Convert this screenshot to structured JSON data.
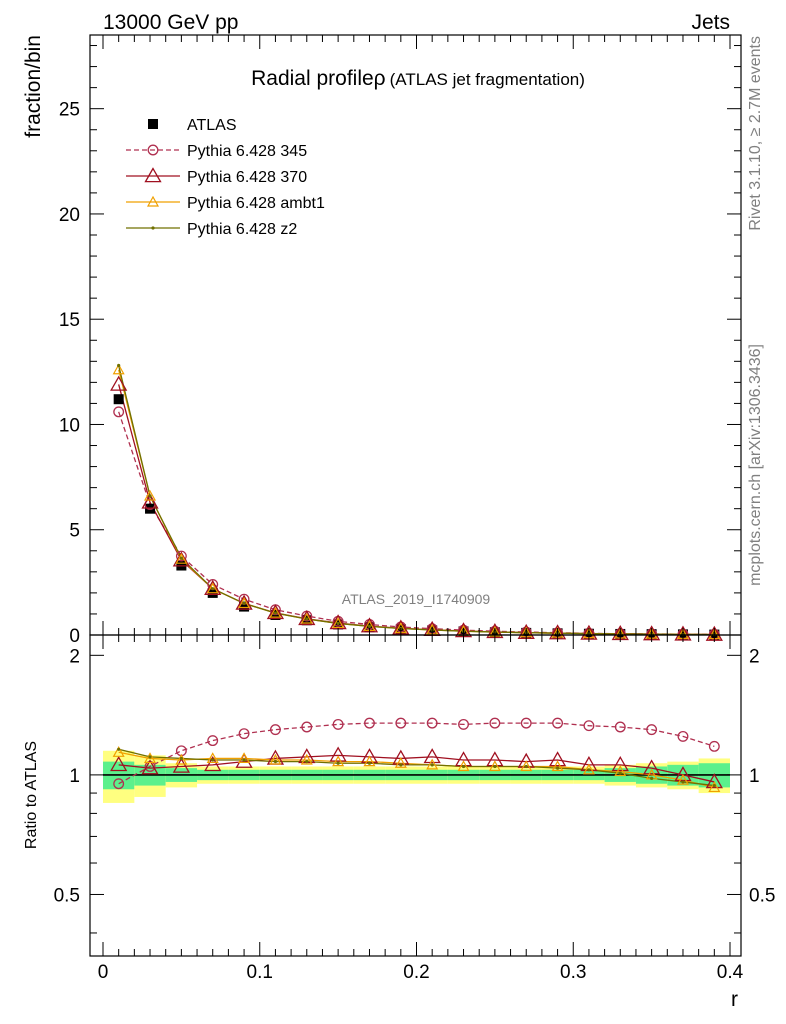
{
  "header": {
    "left": "13000 GeV pp",
    "right": "Jets"
  },
  "side_labels": {
    "rivet": "Rivet 3.1.10, ≥ 2.7M events",
    "mcplots": "mcplots.cern.ch [arXiv:1306.3436]"
  },
  "watermark": "ATLAS_2019_I1740909",
  "colors": {
    "atlas": "#000000",
    "p345": "#b03050",
    "p370": "#a01020",
    "ambt1": "#f0a000",
    "z2": "#707000",
    "band_inner": "#5cf08c",
    "band_outer": "#ffff80"
  },
  "chart_data": [
    {
      "type": "scatter",
      "title": "Radial profile",
      "title_symbol": "ρ",
      "subtitle": "(ATLAS jet fragmentation)",
      "ylabel": "fraction/bin",
      "xlabel": "r",
      "xlim": [
        0,
        0.4
      ],
      "ylim": [
        0,
        28.5
      ],
      "yticks": [
        0,
        5,
        10,
        15,
        20,
        25
      ],
      "x": [
        0.01,
        0.03,
        0.05,
        0.07,
        0.09,
        0.11,
        0.13,
        0.15,
        0.17,
        0.19,
        0.21,
        0.23,
        0.25,
        0.27,
        0.29,
        0.31,
        0.33,
        0.35,
        0.37,
        0.39
      ],
      "legend_position": "top-left",
      "series": [
        {
          "name": "ATLAS",
          "key": "atlas",
          "style": "square",
          "values": [
            11.2,
            6.0,
            3.3,
            2.0,
            1.35,
            0.95,
            0.7,
            0.5,
            0.37,
            0.28,
            0.22,
            0.17,
            0.13,
            0.1,
            0.08,
            0.06,
            0.05,
            0.04,
            0.03,
            0.02
          ]
        },
        {
          "name": "Pythia 6.428 345",
          "key": "p345",
          "style": "circle-dashed",
          "values": [
            10.6,
            6.2,
            3.75,
            2.4,
            1.7,
            1.2,
            0.9,
            0.65,
            0.5,
            0.38,
            0.3,
            0.23,
            0.18,
            0.14,
            0.11,
            0.08,
            0.06,
            0.05,
            0.04,
            0.03
          ]
        },
        {
          "name": "Pythia 6.428 370",
          "key": "p370",
          "style": "triangle-large",
          "values": [
            11.9,
            6.3,
            3.55,
            2.2,
            1.5,
            1.05,
            0.77,
            0.57,
            0.42,
            0.32,
            0.25,
            0.19,
            0.15,
            0.11,
            0.09,
            0.07,
            0.055,
            0.045,
            0.032,
            0.02
          ]
        },
        {
          "name": "Pythia 6.428 ambt1",
          "key": "ambt1",
          "style": "triangle-small",
          "values": [
            12.6,
            6.6,
            3.6,
            2.2,
            1.5,
            1.04,
            0.76,
            0.55,
            0.41,
            0.31,
            0.24,
            0.18,
            0.14,
            0.11,
            0.085,
            0.065,
            0.05,
            0.04,
            0.03,
            0.02
          ]
        },
        {
          "name": "Pythia 6.428 z2",
          "key": "z2",
          "style": "dot",
          "values": [
            12.8,
            6.6,
            3.65,
            2.2,
            1.5,
            1.04,
            0.76,
            0.55,
            0.41,
            0.31,
            0.24,
            0.18,
            0.14,
            0.11,
            0.085,
            0.065,
            0.05,
            0.04,
            0.03,
            0.02
          ]
        }
      ]
    },
    {
      "type": "line",
      "ylabel": "Ratio to ATLAS",
      "xlabel": "r",
      "xlim": [
        0,
        0.4
      ],
      "ylim": [
        0.35,
        2.25
      ],
      "yticks": [
        0.5,
        1,
        2
      ],
      "xticks": [
        0,
        0.1,
        0.2,
        0.3,
        0.4
      ],
      "x": [
        0.01,
        0.03,
        0.05,
        0.07,
        0.09,
        0.11,
        0.13,
        0.15,
        0.17,
        0.19,
        0.21,
        0.23,
        0.25,
        0.27,
        0.29,
        0.31,
        0.33,
        0.35,
        0.37,
        0.39
      ],
      "bands": {
        "inner": [
          0.08,
          0.06,
          0.04,
          0.03,
          0.03,
          0.03,
          0.03,
          0.03,
          0.03,
          0.03,
          0.03,
          0.03,
          0.03,
          0.03,
          0.03,
          0.03,
          0.04,
          0.05,
          0.06,
          0.07
        ],
        "outer": [
          0.15,
          0.12,
          0.07,
          0.05,
          0.05,
          0.05,
          0.05,
          0.05,
          0.05,
          0.05,
          0.05,
          0.05,
          0.05,
          0.05,
          0.05,
          0.05,
          0.06,
          0.07,
          0.08,
          0.1
        ]
      },
      "series": [
        {
          "name": "Pythia 6.428 345",
          "key": "p345",
          "values": [
            0.95,
            1.05,
            1.15,
            1.22,
            1.27,
            1.3,
            1.32,
            1.34,
            1.35,
            1.35,
            1.35,
            1.34,
            1.35,
            1.35,
            1.35,
            1.33,
            1.32,
            1.3,
            1.25,
            1.18
          ]
        },
        {
          "name": "Pythia 6.428 370",
          "key": "p370",
          "values": [
            1.06,
            1.04,
            1.05,
            1.06,
            1.08,
            1.1,
            1.11,
            1.12,
            1.11,
            1.1,
            1.11,
            1.09,
            1.09,
            1.08,
            1.09,
            1.06,
            1.06,
            1.04,
            1.0,
            0.96
          ]
        },
        {
          "name": "Pythia 6.428 ambt1",
          "key": "ambt1",
          "values": [
            1.14,
            1.1,
            1.09,
            1.1,
            1.1,
            1.09,
            1.09,
            1.08,
            1.08,
            1.07,
            1.06,
            1.05,
            1.05,
            1.05,
            1.05,
            1.03,
            1.02,
            1.0,
            0.97,
            0.93
          ]
        },
        {
          "name": "Pythia 6.428 z2",
          "key": "z2",
          "values": [
            1.16,
            1.11,
            1.1,
            1.09,
            1.09,
            1.08,
            1.08,
            1.07,
            1.07,
            1.06,
            1.06,
            1.05,
            1.05,
            1.05,
            1.04,
            1.03,
            1.01,
            0.98,
            0.96,
            0.94
          ]
        }
      ]
    }
  ]
}
